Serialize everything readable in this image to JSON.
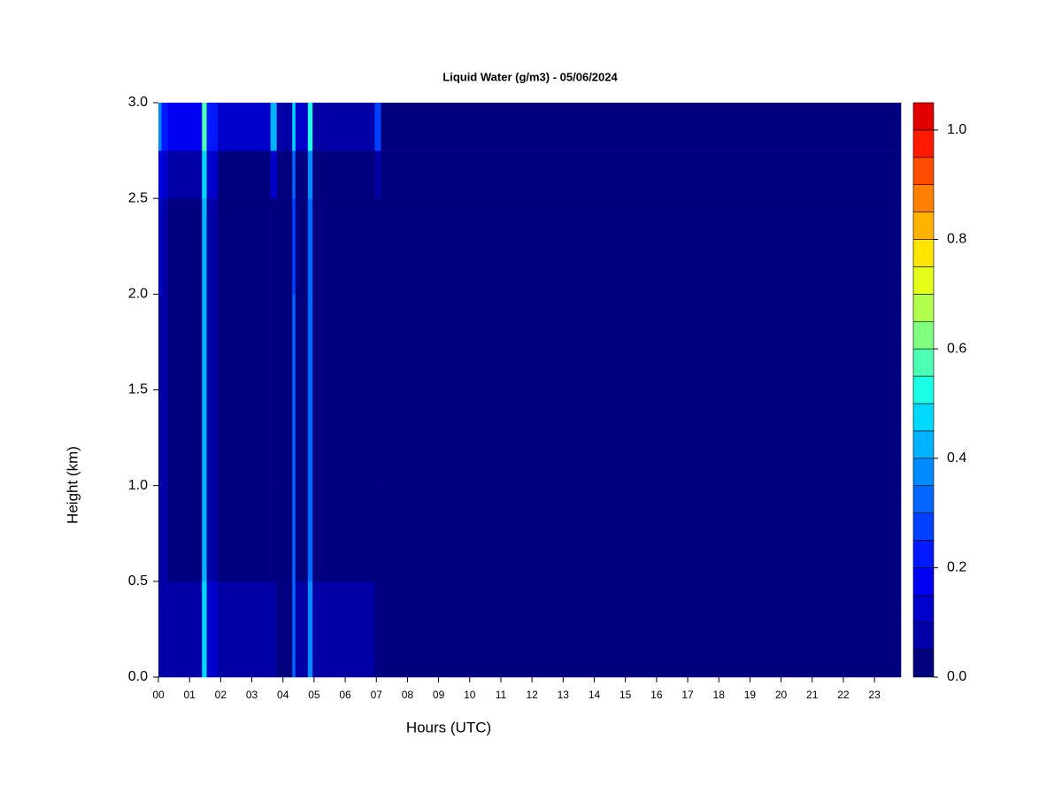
{
  "chart_data": {
    "type": "heatmap",
    "title": "Liquid Water (g/m3) - 05/06/2024",
    "x_label": "Hours (UTC)",
    "y_label": "Height (km)",
    "x_edges": [
      0,
      0.1,
      0.3,
      1.4,
      1.55,
      1.9,
      3.6,
      3.8,
      4.3,
      4.4,
      4.8,
      4.95,
      6.95,
      7.15,
      23.85
    ],
    "y_edges": [
      0,
      0.5,
      1.0,
      1.5,
      2.0,
      2.5,
      2.75,
      3.0
    ],
    "values": [
      [
        0.05,
        0.05,
        0.05,
        0.05,
        0.1,
        0.15,
        0.35
      ],
      [
        0.05,
        0.05,
        0.05,
        0.05,
        0.05,
        0.1,
        0.2
      ],
      [
        0.05,
        0.02,
        0.02,
        0.02,
        0.02,
        0.05,
        0.15
      ],
      [
        0.45,
        0.4,
        0.4,
        0.4,
        0.4,
        0.45,
        0.55
      ],
      [
        0.1,
        0.05,
        0.05,
        0.05,
        0.05,
        0.1,
        0.2
      ],
      [
        0.05,
        0.02,
        0.02,
        0.02,
        0.02,
        0.02,
        0.1
      ],
      [
        0.05,
        0.02,
        0.02,
        0.02,
        0.02,
        0.1,
        0.4
      ],
      [
        0.02,
        0.02,
        0.02,
        0.02,
        0.02,
        0.02,
        0.05
      ],
      [
        0.3,
        0.3,
        0.3,
        0.3,
        0.25,
        0.3,
        0.45
      ],
      [
        0.05,
        0.02,
        0.02,
        0.02,
        0.02,
        0.02,
        0.1
      ],
      [
        0.35,
        0.3,
        0.3,
        0.3,
        0.3,
        0.35,
        0.5
      ],
      [
        0.05,
        0.02,
        0.02,
        0.02,
        0.02,
        0.02,
        0.05
      ],
      [
        0.02,
        0.02,
        0.02,
        0.02,
        0.02,
        0.05,
        0.25
      ],
      [
        0,
        0,
        0,
        0,
        0,
        0,
        0
      ]
    ],
    "xlim": [
      0,
      23.85
    ],
    "ylim": [
      0,
      3.0
    ],
    "xticks": [
      {
        "value": 0,
        "label": "00"
      },
      {
        "value": 1,
        "label": "01"
      },
      {
        "value": 2,
        "label": "02"
      },
      {
        "value": 3,
        "label": "03"
      },
      {
        "value": 4,
        "label": "04"
      },
      {
        "value": 5,
        "label": "05"
      },
      {
        "value": 6,
        "label": "06"
      },
      {
        "value": 7,
        "label": "07"
      },
      {
        "value": 8,
        "label": "08"
      },
      {
        "value": 9,
        "label": "09"
      },
      10,
      11,
      12,
      13,
      14,
      15,
      16,
      17,
      18,
      19,
      20,
      21,
      22,
      23
    ],
    "yticks": [
      {
        "value": 0,
        "label": "0.0"
      },
      {
        "value": 0.5,
        "label": "0.5"
      },
      {
        "value": 1.0,
        "label": "1.0"
      },
      {
        "value": 1.5,
        "label": "1.5"
      },
      {
        "value": 2.0,
        "label": "2.0"
      },
      {
        "value": 2.5,
        "label": "2.5"
      },
      {
        "value": 3.0,
        "label": "3.0"
      }
    ],
    "colorbar": {
      "levels": [
        0,
        0.05,
        0.1,
        0.15,
        0.2,
        0.25,
        0.3,
        0.35,
        0.4,
        0.45,
        0.5,
        0.55,
        0.6,
        0.65,
        0.7,
        0.75,
        0.8,
        0.85,
        0.9,
        0.95,
        1.0,
        1.05
      ],
      "colors": [
        "#00007f",
        "#0000a6",
        "#0000cc",
        "#0000f2",
        "#0019ff",
        "#0040ff",
        "#0066ff",
        "#008cff",
        "#00b2ff",
        "#00d9ff",
        "#1affe6",
        "#4dffb3",
        "#80ff80",
        "#b3ff4d",
        "#e6ff1a",
        "#ffe500",
        "#ffb200",
        "#ff8000",
        "#ff4d00",
        "#ff1a00",
        "#e00000"
      ],
      "ticks": [
        {
          "value": 0,
          "label": "0.0"
        },
        {
          "value": 0.2,
          "label": "0.2"
        },
        {
          "value": 0.4,
          "label": "0.4"
        },
        {
          "value": 0.6,
          "label": "0.6"
        },
        {
          "value": 0.8,
          "label": "0.8"
        },
        {
          "value": 1.0,
          "label": "1.0"
        }
      ]
    }
  }
}
